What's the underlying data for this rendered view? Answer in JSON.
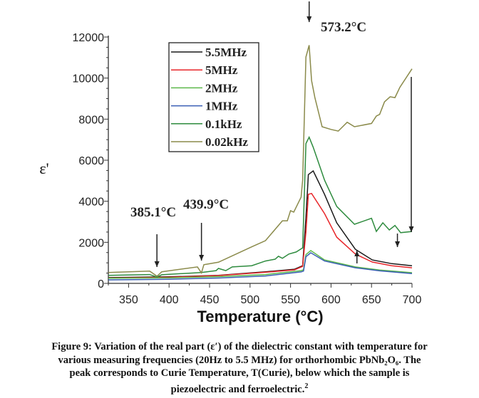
{
  "chart_data": {
    "type": "line",
    "xlabel": "Temperature (°C)",
    "ylabel": "ε'",
    "xlim": [
      325,
      700
    ],
    "ylim": [
      0,
      12000
    ],
    "xticks": [
      350,
      400,
      450,
      500,
      550,
      600,
      650,
      700
    ],
    "yticks": [
      0,
      2000,
      4000,
      6000,
      8000,
      10000,
      12000
    ],
    "grid": false,
    "legend_position": "top-left",
    "series": [
      {
        "name": "5.5MHz",
        "color": "#1a1a1a",
        "x": [
          325,
          400,
          461,
          519,
          555,
          565,
          569,
          572,
          578,
          592,
          607,
          630,
          651,
          675,
          700
        ],
        "y": [
          280,
          320,
          390,
          565,
          690,
          860,
          3200,
          5300,
          5480,
          4340,
          2950,
          1660,
          1140,
          960,
          860
        ]
      },
      {
        "name": "5MHz",
        "color": "#e8262a",
        "x": [
          325,
          400,
          461,
          519,
          555,
          565,
          569,
          572,
          576,
          592,
          607,
          630,
          651,
          675,
          700
        ],
        "y": [
          260,
          300,
          380,
          540,
          660,
          830,
          2500,
          4340,
          4380,
          3400,
          2250,
          1430,
          1040,
          860,
          760
        ]
      },
      {
        "name": "2MHz",
        "color": "#5cb84a",
        "x": [
          325,
          400,
          461,
          519,
          563,
          566,
          569,
          575,
          592,
          630,
          660,
          700
        ],
        "y": [
          250,
          270,
          330,
          430,
          620,
          660,
          1400,
          1600,
          1140,
          800,
          650,
          520
        ]
      },
      {
        "name": "1MHz",
        "color": "#3a5fb5",
        "x": [
          325,
          400,
          461,
          519,
          563,
          566,
          569,
          575,
          592,
          630,
          660,
          700
        ],
        "y": [
          170,
          200,
          260,
          360,
          560,
          600,
          1300,
          1490,
          1090,
          760,
          610,
          480
        ]
      },
      {
        "name": "0.1kHz",
        "color": "#2e8b3e",
        "x": [
          325,
          376,
          385,
          391,
          440,
          458,
          461,
          470,
          478,
          502,
          519,
          531,
          535,
          540,
          548,
          557,
          565,
          569,
          573,
          578,
          592,
          607,
          629,
          650,
          656,
          664,
          672,
          679,
          686,
          700
        ],
        "y": [
          390,
          430,
          310,
          420,
          530,
          620,
          730,
          620,
          800,
          860,
          1090,
          1180,
          1320,
          1220,
          1430,
          1530,
          1730,
          6810,
          7120,
          6630,
          5030,
          3750,
          2880,
          3170,
          2530,
          2950,
          2600,
          2820,
          2470,
          2530
        ]
      },
      {
        "name": "0.02kHz",
        "color": "#8a8a4a",
        "x": [
          325,
          376,
          385,
          391,
          435,
          440,
          443,
          461,
          502,
          519,
          540,
          546,
          550,
          554,
          563,
          565,
          569,
          573,
          576,
          580,
          589,
          600,
          609,
          620,
          629,
          650,
          656,
          660,
          666,
          673,
          679,
          685,
          700
        ],
        "y": [
          530,
          600,
          350,
          565,
          800,
          510,
          910,
          1030,
          1780,
          2080,
          3050,
          3050,
          3540,
          3470,
          4200,
          5030,
          11030,
          11600,
          9880,
          9060,
          7630,
          7500,
          7420,
          7850,
          7630,
          7790,
          8150,
          8230,
          8840,
          9090,
          9050,
          9550,
          10450
        ]
      }
    ],
    "annotations": [
      {
        "text": "573.2°C",
        "x": 573,
        "arrow": "down"
      },
      {
        "text": "385.1°C",
        "x": 385,
        "arrow": "down"
      },
      {
        "text": "439.9°C",
        "x": 440,
        "arrow": "down"
      }
    ]
  },
  "caption": {
    "line1": "Figure 9: Variation of the real part (ε′) of the dielectric constant with temperature for",
    "line2": "various measuring frequencies (20Hz to 5.5 MHz) for orthorhombic PbNb₂O₆. The",
    "line3": "peak corresponds to Curie Temperature, T(Curie), below which the sample is",
    "line4": "piezoelectric and ferroelectric.",
    "ref": "2"
  }
}
